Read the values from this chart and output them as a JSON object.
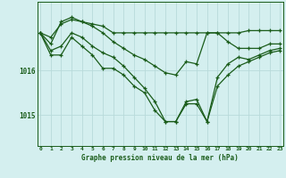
{
  "title": "Graphe pression niveau de la mer (hPa)",
  "background_color": "#d4efef",
  "grid_color": "#b8dada",
  "line_color": "#1a5c1a",
  "x_labels": [
    "0",
    "1",
    "2",
    "3",
    "4",
    "5",
    "6",
    "7",
    "8",
    "9",
    "10",
    "11",
    "12",
    "13",
    "14",
    "15",
    "16",
    "17",
    "18",
    "19",
    "20",
    "21",
    "22",
    "23"
  ],
  "ylim": [
    1014.3,
    1017.55
  ],
  "yticks": [
    1015,
    1016
  ],
  "series": [
    [
      1016.85,
      1016.75,
      1017.05,
      1017.15,
      1017.1,
      1017.05,
      1017.0,
      1016.85,
      1016.85,
      1016.85,
      1016.85,
      1016.85,
      1016.85,
      1016.85,
      1016.85,
      1016.85,
      1016.85,
      1016.85,
      1016.85,
      1016.85,
      1016.9,
      1016.9,
      1016.9,
      1016.9
    ],
    [
      1016.85,
      1016.6,
      1017.1,
      1017.2,
      1017.1,
      1017.0,
      1016.85,
      1016.65,
      1016.5,
      1016.35,
      1016.25,
      1016.1,
      1015.95,
      1015.9,
      1016.2,
      1016.15,
      1016.85,
      1016.85,
      1016.65,
      1016.5,
      1016.5,
      1016.5,
      1016.6,
      1016.6
    ],
    [
      1016.85,
      1016.45,
      1016.55,
      1016.85,
      1016.75,
      1016.55,
      1016.4,
      1016.3,
      1016.1,
      1015.85,
      1015.6,
      1015.3,
      1014.85,
      1014.85,
      1015.3,
      1015.35,
      1014.85,
      1015.85,
      1016.15,
      1016.3,
      1016.25,
      1016.35,
      1016.45,
      1016.5
    ],
    [
      1016.85,
      1016.35,
      1016.35,
      1016.75,
      1016.55,
      1016.35,
      1016.05,
      1016.05,
      1015.9,
      1015.65,
      1015.5,
      1015.1,
      1014.85,
      1014.85,
      1015.25,
      1015.25,
      1014.85,
      1015.65,
      1015.9,
      1016.1,
      1016.2,
      1016.3,
      1016.4,
      1016.45
    ]
  ]
}
